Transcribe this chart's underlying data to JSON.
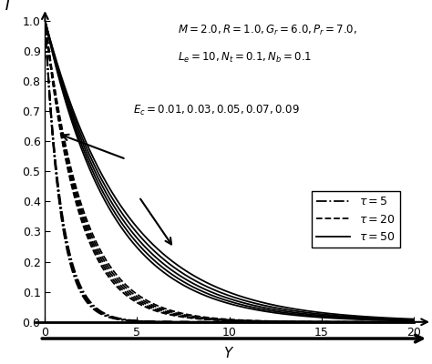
{
  "title_line1": "$M = 2.0, R = 1.0, G_r = 6.0, P_r = 7.0,$",
  "title_line2": "$L_e = 10, N_t = 0.1, N_b = 0.1$",
  "ec_label": "$E_c = 0.01, 0.03, 0.05, 0.07, 0.09$",
  "xlabel": "$Y$",
  "ylabel": "$\\bar{T}$",
  "xlim": [
    0,
    20
  ],
  "ylim": [
    0,
    1.0
  ],
  "xticks": [
    0,
    5,
    10,
    15,
    20
  ],
  "yticks": [
    0,
    0.1,
    0.2,
    0.3,
    0.4,
    0.5,
    0.6,
    0.7,
    0.8,
    0.9,
    1.0
  ],
  "ec_values": [
    0.01,
    0.03,
    0.05,
    0.07,
    0.09
  ],
  "tau_values": [
    5,
    20,
    50
  ],
  "tau_linestyles": [
    "-.",
    "--",
    "-"
  ],
  "tau_labels": [
    "$\\tau = 5$",
    "$\\tau = 20$",
    "$\\tau = 50$"
  ],
  "tau_base_alphas": [
    1.2,
    0.55,
    0.28
  ],
  "tau_ec_effects": [
    0.025,
    0.018,
    0.012
  ],
  "background_color": "#ffffff",
  "line_color": "black",
  "line_width": 1.3,
  "figsize": [
    4.74,
    4.0
  ],
  "dpi": 100
}
